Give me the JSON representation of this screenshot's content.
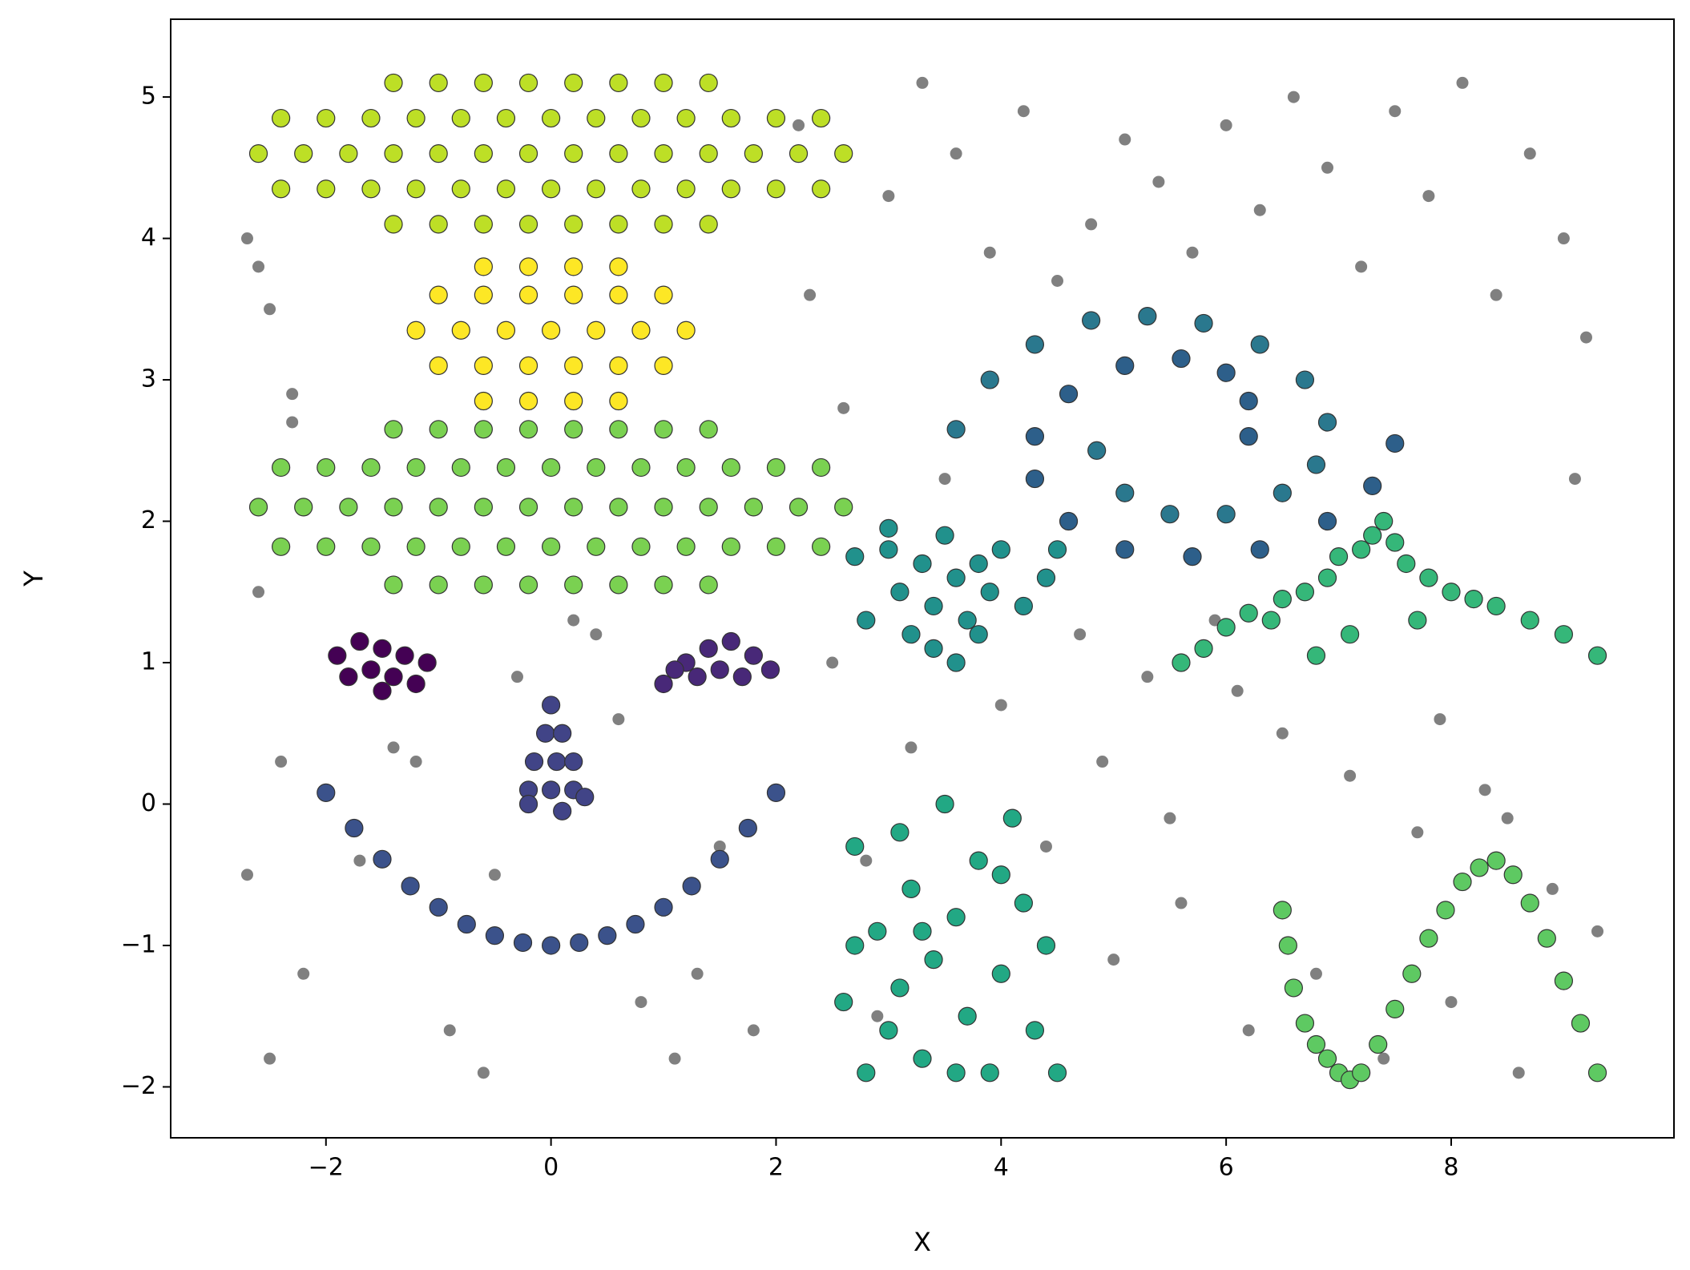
{
  "chart_data": {
    "type": "scatter",
    "x_label": "X",
    "y_label": "Y",
    "xlim": [
      -3.38,
      9.98
    ],
    "ylim": [
      -2.36,
      5.55
    ],
    "xticks": [
      {
        "value": -2,
        "label": "−2"
      },
      0,
      2,
      4,
      6,
      8
    ],
    "yticks": [
      {
        "value": -2,
        "label": "−2"
      },
      {
        "value": -1,
        "label": "−1"
      },
      0,
      1,
      2,
      3,
      4,
      5
    ],
    "series": [
      {
        "color": "#808080",
        "x": [
          -2.7,
          -2.5,
          -2.3,
          -2.6,
          -2.4,
          -2.7,
          -2.2,
          -2.5,
          -2.6,
          -2.3,
          -1.4,
          -0.9,
          -0.6,
          -0.3,
          0.4,
          0.8,
          1.1,
          1.5,
          2.2,
          -0.5,
          0.6,
          1.3,
          -1.2,
          1.8,
          2.3,
          2.5,
          2.8,
          3.0,
          3.3,
          3.6,
          3.9,
          4.2,
          4.5,
          4.8,
          5.1,
          5.4,
          5.7,
          6.0,
          6.3,
          6.6,
          6.9,
          7.2,
          7.5,
          7.8,
          8.1,
          8.4,
          8.7,
          9.0,
          9.2,
          2.6,
          3.2,
          4.0,
          4.7,
          5.3,
          5.9,
          6.5,
          7.1,
          7.7,
          8.3,
          8.9,
          9.1,
          2.9,
          4.4,
          5.0,
          5.6,
          6.2,
          6.8,
          7.4,
          8.0,
          8.6,
          9.3,
          3.5,
          4.9,
          5.5,
          6.1,
          6.7,
          7.9,
          8.5,
          -1.7,
          0.2
        ],
        "values": [
          4.0,
          3.5,
          2.9,
          1.5,
          0.3,
          -0.5,
          -1.2,
          -1.8,
          3.8,
          2.7,
          0.4,
          -1.6,
          -1.9,
          0.9,
          1.2,
          -1.4,
          -1.8,
          -0.3,
          4.8,
          -0.5,
          0.6,
          -1.2,
          0.3,
          -1.6,
          3.6,
          1.0,
          -0.4,
          4.3,
          5.1,
          4.6,
          3.9,
          4.9,
          3.7,
          4.1,
          4.7,
          4.4,
          3.9,
          4.8,
          4.2,
          5.0,
          4.5,
          3.8,
          4.9,
          4.3,
          5.1,
          3.6,
          4.6,
          4.0,
          3.3,
          2.8,
          0.4,
          0.7,
          1.2,
          0.9,
          1.3,
          0.5,
          0.2,
          -0.2,
          0.1,
          -0.6,
          2.3,
          -1.5,
          -0.3,
          -1.1,
          -0.7,
          -1.6,
          -1.2,
          -1.8,
          -1.4,
          -1.9,
          -0.9,
          2.3,
          0.3,
          -0.1,
          0.8,
          1.5,
          0.6,
          -0.1,
          -0.4,
          1.3
        ]
      },
      {
        "color": "#bddf26",
        "edgecolor": "#333333",
        "x": [
          -1.4,
          -1.0,
          -0.6,
          -0.2,
          0.2,
          0.6,
          1.0,
          1.4,
          -2.4,
          -2.0,
          -1.6,
          -1.2,
          -0.8,
          -0.4,
          0,
          0.4,
          0.8,
          1.2,
          1.6,
          2.0,
          2.4,
          -2.6,
          -2.2,
          -1.8,
          -1.4,
          -1.0,
          -0.6,
          -0.2,
          0.2,
          0.6,
          1.0,
          1.4,
          1.8,
          2.2,
          2.6,
          -2.4,
          -2.0,
          -1.6,
          -1.2,
          -0.8,
          -0.4,
          0,
          0.4,
          0.8,
          1.2,
          1.6,
          2.0,
          2.4,
          -1.4,
          -1.0,
          -0.6,
          -0.2,
          0.2,
          0.6,
          1.0,
          1.4
        ],
        "values": [
          4.1,
          4.1,
          4.1,
          4.1,
          4.1,
          4.1,
          4.1,
          4.1,
          4.35,
          4.35,
          4.35,
          4.35,
          4.35,
          4.35,
          4.35,
          4.35,
          4.35,
          4.35,
          4.35,
          4.35,
          4.35,
          4.6,
          4.6,
          4.6,
          4.6,
          4.6,
          4.6,
          4.6,
          4.6,
          4.6,
          4.6,
          4.6,
          4.6,
          4.6,
          4.6,
          4.85,
          4.85,
          4.85,
          4.85,
          4.85,
          4.85,
          4.85,
          4.85,
          4.85,
          4.85,
          4.85,
          4.85,
          4.85,
          5.1,
          5.1,
          5.1,
          5.1,
          5.1,
          5.1,
          5.1,
          5.1
        ]
      },
      {
        "color": "#fde725",
        "edgecolor": "#333333",
        "x": [
          -0.6,
          -0.2,
          0.2,
          0.6,
          -1.0,
          -0.6,
          -0.2,
          0.2,
          0.6,
          1.0,
          -1.2,
          -0.8,
          -0.4,
          0,
          0.4,
          0.8,
          1.2,
          -1.0,
          -0.6,
          -0.2,
          0.2,
          0.6,
          1.0,
          -0.6,
          -0.2,
          0.2,
          0.6
        ],
        "values": [
          2.85,
          2.85,
          2.85,
          2.85,
          3.1,
          3.1,
          3.1,
          3.1,
          3.1,
          3.1,
          3.35,
          3.35,
          3.35,
          3.35,
          3.35,
          3.35,
          3.35,
          3.6,
          3.6,
          3.6,
          3.6,
          3.6,
          3.6,
          3.8,
          3.8,
          3.8,
          3.8
        ]
      },
      {
        "color": "#7ad151",
        "edgecolor": "#333333",
        "x": [
          -1.4,
          -1.0,
          -0.6,
          -0.2,
          0.2,
          0.6,
          1.0,
          1.4,
          -2.4,
          -2.0,
          -1.6,
          -1.2,
          -0.8,
          -0.4,
          0,
          0.4,
          0.8,
          1.2,
          1.6,
          2.0,
          2.4,
          -2.6,
          -2.2,
          -1.8,
          -1.4,
          -1.0,
          -0.6,
          -0.2,
          0.2,
          0.6,
          1.0,
          1.4,
          1.8,
          2.2,
          2.6,
          -2.4,
          -2.0,
          -1.6,
          -1.2,
          -0.8,
          -0.4,
          0,
          0.4,
          0.8,
          1.2,
          1.6,
          2.0,
          2.4,
          -1.4,
          -1.0,
          -0.6,
          -0.2,
          0.2,
          0.6,
          1.0,
          1.4
        ],
        "values": [
          1.55,
          1.55,
          1.55,
          1.55,
          1.55,
          1.55,
          1.55,
          1.55,
          1.82,
          1.82,
          1.82,
          1.82,
          1.82,
          1.82,
          1.82,
          1.82,
          1.82,
          1.82,
          1.82,
          1.82,
          1.82,
          2.1,
          2.1,
          2.1,
          2.1,
          2.1,
          2.1,
          2.1,
          2.1,
          2.1,
          2.1,
          2.1,
          2.1,
          2.1,
          2.1,
          2.38,
          2.38,
          2.38,
          2.38,
          2.38,
          2.38,
          2.38,
          2.38,
          2.38,
          2.38,
          2.38,
          2.38,
          2.38,
          2.65,
          2.65,
          2.65,
          2.65,
          2.65,
          2.65,
          2.65,
          2.65
        ]
      },
      {
        "color": "#440154",
        "edgecolor": "#333333",
        "x": [
          -1.9,
          -1.7,
          -1.5,
          -1.3,
          -1.1,
          -1.8,
          -1.6,
          -1.4,
          -1.2,
          -1.5
        ],
        "values": [
          1.05,
          1.15,
          1.1,
          1.05,
          1.0,
          0.9,
          0.95,
          0.9,
          0.85,
          0.8
        ]
      },
      {
        "color": "#482878",
        "edgecolor": "#333333",
        "x": [
          1.0,
          1.2,
          1.4,
          1.6,
          1.8,
          1.95,
          1.3,
          1.5,
          1.7,
          1.1
        ],
        "values": [
          0.85,
          1.0,
          1.1,
          1.15,
          1.05,
          0.95,
          0.9,
          0.95,
          0.9,
          0.95
        ]
      },
      {
        "color": "#414487",
        "edgecolor": "#333333",
        "x": [
          0,
          -0.05,
          0.1,
          -0.15,
          0.05,
          0.2,
          -0.2,
          0,
          0.2,
          -0.2,
          0.1,
          0.3
        ],
        "values": [
          0.7,
          0.5,
          0.5,
          0.3,
          0.3,
          0.3,
          0.1,
          0.1,
          0.1,
          0.0,
          -0.05,
          0.05
        ]
      },
      {
        "color": "#3b528b",
        "edgecolor": "#333333",
        "x": [
          -2,
          -1.75,
          -1.5,
          -1.25,
          -1,
          -0.75,
          -0.5,
          -0.25,
          0,
          0.25,
          0.5,
          0.75,
          1,
          1.25,
          1.5,
          1.75,
          2
        ],
        "values": [
          0.08,
          -0.17,
          -0.39,
          -0.58,
          -0.73,
          -0.85,
          -0.93,
          -0.98,
          -1.0,
          -0.98,
          -0.93,
          -0.85,
          -0.73,
          -0.58,
          -0.39,
          -0.17,
          0.08
        ]
      },
      {
        "color": "#2a788e",
        "edgecolor": "#333333",
        "x": [
          3.6,
          3.9,
          4.3,
          4.8,
          5.3,
          5.8,
          6.3,
          6.7,
          6.9,
          6.8,
          6.5,
          6.0,
          5.5,
          5.1,
          4.85
        ],
        "values": [
          2.65,
          3.0,
          3.25,
          3.42,
          3.45,
          3.4,
          3.25,
          3.0,
          2.7,
          2.4,
          2.2,
          2.05,
          2.05,
          2.2,
          2.5
        ]
      },
      {
        "color": "#2d5f8a",
        "edgecolor": "#333333",
        "x": [
          6.2,
          6.2,
          6.0,
          5.6,
          5.1,
          4.6,
          4.3,
          4.3,
          4.6,
          5.1,
          5.7,
          6.3,
          6.9,
          7.3,
          7.5
        ],
        "values": [
          2.6,
          2.85,
          3.05,
          3.15,
          3.1,
          2.9,
          2.6,
          2.3,
          2.0,
          1.8,
          1.75,
          1.8,
          2.0,
          2.25,
          2.55
        ]
      },
      {
        "color": "#21918c",
        "edgecolor": "#333333",
        "x": [
          2.8,
          3.0,
          3.1,
          3.2,
          3.3,
          3.4,
          3.5,
          3.6,
          3.7,
          3.8,
          3.9,
          4.0,
          4.2,
          4.4,
          3.4,
          3.6,
          3.0,
          3.8,
          2.7,
          4.5
        ],
        "values": [
          1.3,
          1.8,
          1.5,
          1.2,
          1.7,
          1.4,
          1.9,
          1.6,
          1.3,
          1.7,
          1.5,
          1.8,
          1.4,
          1.6,
          1.1,
          1.0,
          1.95,
          1.2,
          1.75,
          1.8
        ]
      },
      {
        "color": "#35b779",
        "edgecolor": "#333333",
        "x": [
          5.6,
          5.8,
          6.0,
          6.2,
          6.4,
          6.5,
          6.7,
          6.9,
          7.0,
          7.2,
          7.3,
          7.4,
          7.5,
          7.6,
          7.8,
          8.0,
          8.2,
          8.4,
          8.7,
          9.0,
          9.3,
          7.1,
          6.8,
          7.7
        ],
        "values": [
          1.0,
          1.1,
          1.25,
          1.35,
          1.3,
          1.45,
          1.5,
          1.6,
          1.75,
          1.8,
          1.9,
          2.0,
          1.85,
          1.7,
          1.6,
          1.5,
          1.45,
          1.4,
          1.3,
          1.2,
          1.05,
          1.2,
          1.05,
          1.3
        ]
      },
      {
        "color": "#22a884",
        "edgecolor": "#333333",
        "x": [
          2.6,
          2.7,
          2.8,
          2.9,
          3.0,
          3.1,
          3.2,
          3.3,
          3.4,
          3.5,
          3.6,
          3.7,
          3.8,
          3.9,
          4.0,
          4.1,
          4.2,
          4.3,
          4.4,
          4.5,
          2.7,
          3.1,
          3.6,
          4.0,
          3.3
        ],
        "values": [
          -1.4,
          -0.3,
          -1.9,
          -0.9,
          -1.6,
          -0.2,
          -0.6,
          -1.8,
          -1.1,
          0.0,
          -0.8,
          -1.5,
          -0.4,
          -1.9,
          -1.2,
          -0.1,
          -0.7,
          -1.6,
          -1.0,
          -1.9,
          -1.0,
          -1.3,
          -1.9,
          -0.5,
          -0.9
        ]
      },
      {
        "color": "#5ec962",
        "edgecolor": "#333333",
        "x": [
          6.5,
          6.55,
          6.6,
          6.7,
          6.8,
          6.9,
          7.0,
          7.1,
          7.2,
          7.35,
          7.5,
          7.65,
          7.8,
          7.95,
          8.1,
          8.25,
          8.4,
          8.55,
          8.7,
          8.85,
          9.0,
          9.15,
          9.3
        ],
        "values": [
          -0.75,
          -1.0,
          -1.3,
          -1.55,
          -1.7,
          -1.8,
          -1.9,
          -1.95,
          -1.9,
          -1.7,
          -1.45,
          -1.2,
          -0.95,
          -0.75,
          -0.55,
          -0.45,
          -0.4,
          -0.5,
          -0.7,
          -0.95,
          -1.25,
          -1.55,
          -1.9
        ]
      }
    ]
  }
}
